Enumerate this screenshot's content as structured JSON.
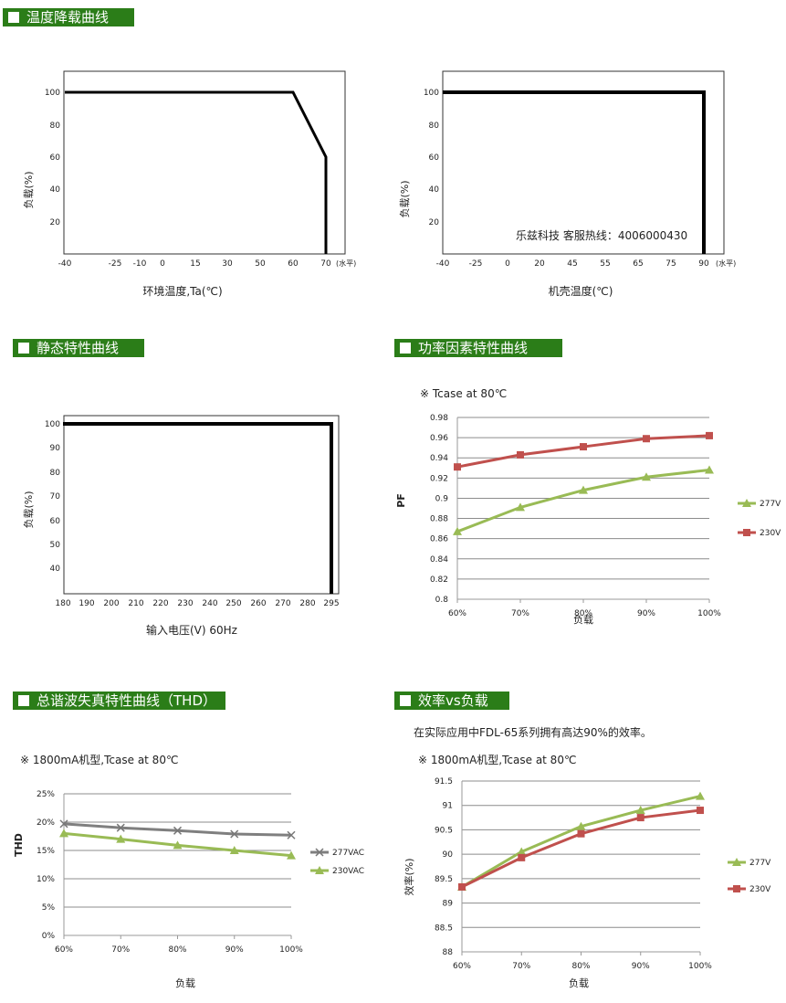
{
  "sections": {
    "s1": "温度降载曲线",
    "s2": "静态特性曲线",
    "s3": "功率因素特性曲线",
    "s4": "总谐波失真特性曲线（THD）",
    "s5": "效率vs负载"
  },
  "notes": {
    "hotline": "乐兹科技 客服热线：4006000430",
    "pf_condition": "※ Tcase at 80℃",
    "thd_condition": "※ 1800mA机型,Tcase at 80℃",
    "eff_intro": "在实际应用中FDL-65系列拥有高达90%的效率。",
    "eff_condition": "※ 1800mA机型,Tcase at 80℃"
  },
  "colors": {
    "header_green": "#2b7d18",
    "green_series": "#99bb55",
    "red_series": "#c0504d",
    "gray_series": "#7f7f7f"
  },
  "chart_data": [
    {
      "type": "line",
      "id": "derating_ambient",
      "x_ticks": [
        "-40",
        "-25",
        "-10",
        "0",
        "15",
        "30",
        "50",
        "60",
        "70"
      ],
      "x_unit_note": "(水平)",
      "y_ticks": [
        "100",
        "80",
        "60",
        "40",
        "20"
      ],
      "xlabel": "环境温度,Ta(℃)",
      "ylabel": "负载(%)",
      "ylim": [
        0,
        110
      ],
      "x": [
        -40,
        60,
        70,
        70
      ],
      "y": [
        100,
        100,
        60,
        0
      ]
    },
    {
      "type": "line",
      "id": "derating_case",
      "x_ticks": [
        "-40",
        "-25",
        "0",
        "20",
        "45",
        "55",
        "65",
        "75",
        "90"
      ],
      "x_unit_note": "(水平)",
      "y_ticks": [
        "100",
        "80",
        "60",
        "40",
        "20"
      ],
      "xlabel": "机壳温度(℃)",
      "ylabel": "负载(%)",
      "ylim": [
        0,
        110
      ],
      "x": [
        -40,
        90,
        90
      ],
      "y": [
        100,
        100,
        0
      ]
    },
    {
      "type": "line",
      "id": "static",
      "x_ticks": [
        "180",
        "190",
        "200",
        "210",
        "220",
        "230",
        "240",
        "250",
        "260",
        "270",
        "280",
        "295"
      ],
      "y_ticks": [
        "100",
        "90",
        "80",
        "70",
        "60",
        "50",
        "40"
      ],
      "xlabel": "输入电压(V) 60Hz",
      "ylabel": "负载(%)",
      "ylim": [
        30,
        100
      ],
      "x": [
        180,
        295,
        295
      ],
      "y": [
        100,
        100,
        30
      ]
    },
    {
      "type": "line",
      "id": "pf",
      "categories": [
        "60%",
        "70%",
        "80%",
        "90%",
        "100%"
      ],
      "y_ticks": [
        "0.98",
        "0.96",
        "0.94",
        "0.92",
        "0.9",
        "0.88",
        "0.86",
        "0.84",
        "0.82",
        "0.8"
      ],
      "ylim": [
        0.8,
        0.98
      ],
      "xlabel": "负载",
      "ylabel": "PF",
      "grid": true,
      "legend": "right",
      "series": [
        {
          "name": "277V",
          "values": [
            0.867,
            0.891,
            0.908,
            0.921,
            0.928
          ]
        },
        {
          "name": "230V",
          "values": [
            0.931,
            0.943,
            0.951,
            0.959,
            0.962
          ]
        }
      ]
    },
    {
      "type": "line",
      "id": "thd",
      "categories": [
        "60%",
        "70%",
        "80%",
        "90%",
        "100%"
      ],
      "y_ticks": [
        "25%",
        "20%",
        "15%",
        "10%",
        "5%",
        "0%"
      ],
      "ylim": [
        0,
        25
      ],
      "xlabel": "负载",
      "ylabel": "THD",
      "grid": true,
      "legend": "right",
      "series": [
        {
          "name": "277VAC",
          "values": [
            19.7,
            19.0,
            18.5,
            17.9,
            17.7
          ]
        },
        {
          "name": "230VAC",
          "values": [
            18.0,
            17.0,
            15.9,
            15.0,
            14.1
          ]
        }
      ]
    },
    {
      "type": "line",
      "id": "efficiency",
      "categories": [
        "60%",
        "70%",
        "80%",
        "90%",
        "100%"
      ],
      "y_ticks": [
        "91.5",
        "91",
        "90.5",
        "90",
        "89.5",
        "89",
        "88.5",
        "88"
      ],
      "ylim": [
        88,
        91.5
      ],
      "xlabel": "负载",
      "ylabel": "效率(%)",
      "grid": true,
      "legend": "right",
      "series": [
        {
          "name": "277V",
          "values": [
            89.33,
            90.05,
            90.57,
            90.9,
            91.19
          ]
        },
        {
          "name": "230V",
          "values": [
            89.33,
            89.93,
            90.42,
            90.75,
            90.9
          ]
        }
      ]
    }
  ]
}
